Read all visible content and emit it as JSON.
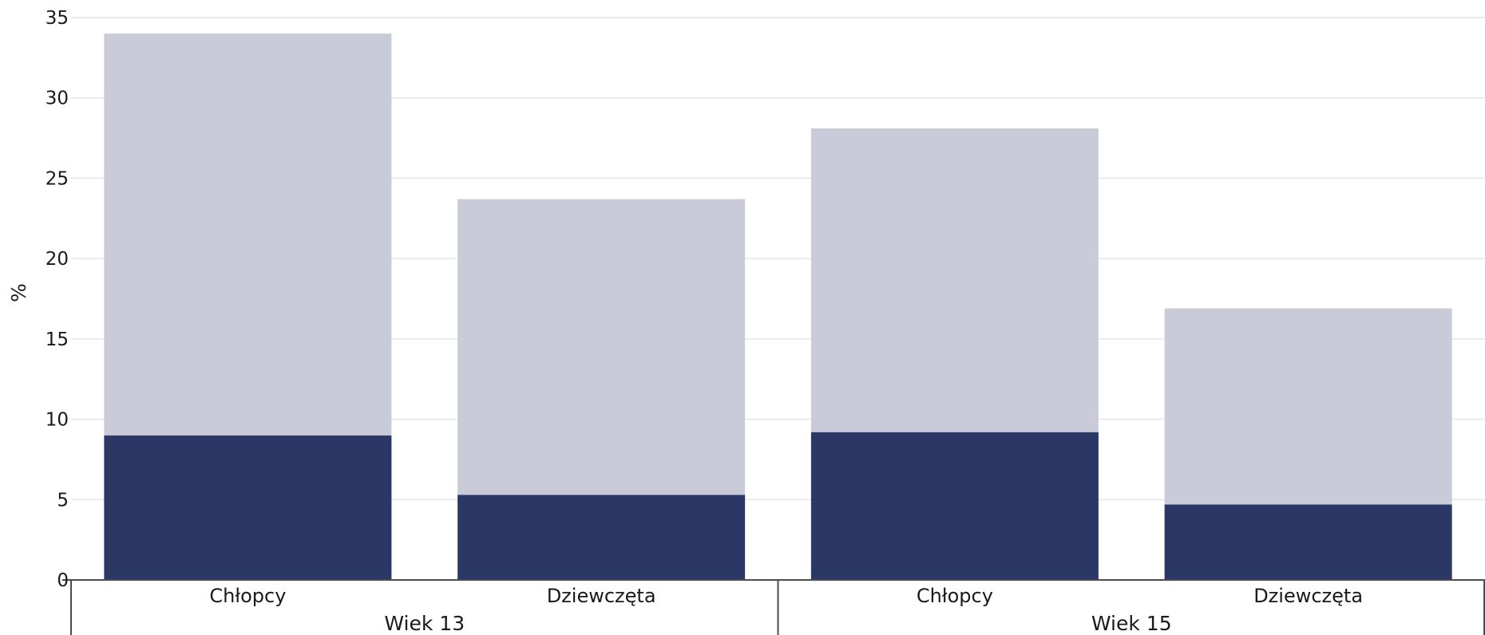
{
  "chart_data": {
    "type": "bar",
    "stacked": true,
    "ylabel": "%",
    "ylim": [
      0,
      35
    ],
    "yticks": [
      0,
      5,
      10,
      15,
      20,
      25,
      30,
      35
    ],
    "grid": true,
    "groups": [
      {
        "label": "Wiek 13",
        "categories": [
          "Chłopcy",
          "Dziewczęta"
        ]
      },
      {
        "label": "Wiek 15",
        "categories": [
          "Chłopcy",
          "Dziewczęta"
        ]
      }
    ],
    "series": [
      {
        "color": "#2b3764",
        "values": [
          9.0,
          5.3,
          9.2,
          4.7
        ]
      },
      {
        "color": "#cacbd8",
        "values": [
          25.0,
          18.4,
          18.9,
          12.2
        ]
      }
    ]
  }
}
